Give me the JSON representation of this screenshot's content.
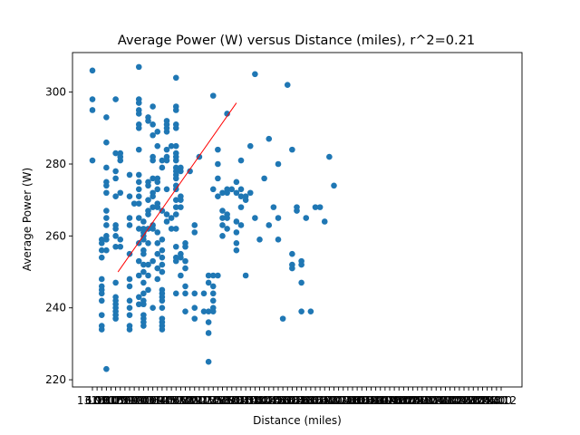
{
  "chart_data": {
    "type": "scatter",
    "title": "Average Power (W) versus Distance (miles), r^2=0.21",
    "xlabel": "Distance (miles)",
    "ylabel": "Average Power (W)",
    "ylim": [
      218,
      311
    ],
    "yticks": [
      220,
      240,
      260,
      280,
      300
    ],
    "xtick_labels": [
      "13.09",
      "6.98",
      "10.00",
      "10.07",
      "10.09",
      "10.50",
      "10.51",
      "10.90",
      "10.99",
      "11.00",
      "11.03",
      "11.06",
      "11.09",
      "11.10",
      "11.40",
      "11.45",
      "11.50",
      "11.65",
      "11.70",
      "11.80",
      "11.89",
      "12.00",
      "12.10",
      "12.15",
      "12.30",
      "12.35",
      "12.50",
      "12.65",
      "12.80",
      "12.90",
      "13.00",
      "13.20",
      "13.40",
      "13.50",
      "13.70",
      "13.80",
      "14.00",
      "14.20",
      "14.40",
      "14.50",
      "14.60",
      "14.80",
      "15.00",
      "15.20",
      "15.40",
      "15.60",
      "15.80",
      "16.00",
      "16.20",
      "16.40",
      "16.60",
      "16.80",
      "17.00",
      "17.20",
      "17.40",
      "17.60",
      "17.80",
      "18.00",
      "18.20",
      "18.40",
      "18.60",
      "18.80",
      "19.00",
      "19.20",
      "19.40",
      "19.60",
      "19.80",
      "20.00",
      "20.20",
      "20.40",
      "20.60",
      "20.80",
      "21.00",
      "21.20",
      "21.40",
      "21.60",
      "21.80",
      "22.00",
      "22.20",
      "22.40",
      "22.60",
      "22.80",
      "23.00",
      "23.20",
      "23.40",
      "23.60",
      "23.80",
      "24.00",
      "24.12"
    ],
    "points": [
      {
        "x": 0,
        "y": 306
      },
      {
        "x": 0,
        "y": 298
      },
      {
        "x": 0,
        "y": 295
      },
      {
        "x": 0,
        "y": 281
      },
      {
        "x": 2,
        "y": 259
      },
      {
        "x": 2,
        "y": 258
      },
      {
        "x": 2,
        "y": 256
      },
      {
        "x": 2,
        "y": 254
      },
      {
        "x": 2,
        "y": 248
      },
      {
        "x": 2,
        "y": 246
      },
      {
        "x": 2,
        "y": 245
      },
      {
        "x": 2,
        "y": 244
      },
      {
        "x": 2,
        "y": 242
      },
      {
        "x": 2,
        "y": 238
      },
      {
        "x": 2,
        "y": 235
      },
      {
        "x": 2,
        "y": 234
      },
      {
        "x": 3,
        "y": 293
      },
      {
        "x": 3,
        "y": 286
      },
      {
        "x": 3,
        "y": 279
      },
      {
        "x": 3,
        "y": 275
      },
      {
        "x": 3,
        "y": 274
      },
      {
        "x": 3,
        "y": 272
      },
      {
        "x": 3,
        "y": 267
      },
      {
        "x": 3,
        "y": 265
      },
      {
        "x": 3,
        "y": 263
      },
      {
        "x": 3,
        "y": 260
      },
      {
        "x": 3,
        "y": 259
      },
      {
        "x": 3,
        "y": 256
      },
      {
        "x": 3,
        "y": 223
      },
      {
        "x": 5,
        "y": 298
      },
      {
        "x": 5,
        "y": 283
      },
      {
        "x": 5,
        "y": 278
      },
      {
        "x": 5,
        "y": 276
      },
      {
        "x": 5,
        "y": 271
      },
      {
        "x": 5,
        "y": 263
      },
      {
        "x": 5,
        "y": 262
      },
      {
        "x": 5,
        "y": 260
      },
      {
        "x": 5,
        "y": 257
      },
      {
        "x": 5,
        "y": 247
      },
      {
        "x": 5,
        "y": 243
      },
      {
        "x": 5,
        "y": 242
      },
      {
        "x": 5,
        "y": 241
      },
      {
        "x": 5,
        "y": 240
      },
      {
        "x": 5,
        "y": 239
      },
      {
        "x": 5,
        "y": 238
      },
      {
        "x": 5,
        "y": 237
      },
      {
        "x": 6,
        "y": 283
      },
      {
        "x": 6,
        "y": 282
      },
      {
        "x": 6,
        "y": 281
      },
      {
        "x": 6,
        "y": 272
      },
      {
        "x": 6,
        "y": 259
      },
      {
        "x": 6,
        "y": 257
      },
      {
        "x": 8,
        "y": 277
      },
      {
        "x": 8,
        "y": 271
      },
      {
        "x": 8,
        "y": 265
      },
      {
        "x": 8,
        "y": 263
      },
      {
        "x": 8,
        "y": 255
      },
      {
        "x": 8,
        "y": 248
      },
      {
        "x": 8,
        "y": 246
      },
      {
        "x": 8,
        "y": 242
      },
      {
        "x": 8,
        "y": 240
      },
      {
        "x": 8,
        "y": 238
      },
      {
        "x": 8,
        "y": 235
      },
      {
        "x": 8,
        "y": 234
      },
      {
        "x": 9,
        "y": 269
      },
      {
        "x": 10,
        "y": 307
      },
      {
        "x": 10,
        "y": 298
      },
      {
        "x": 10,
        "y": 297
      },
      {
        "x": 10,
        "y": 295
      },
      {
        "x": 10,
        "y": 294
      },
      {
        "x": 10,
        "y": 291
      },
      {
        "x": 10,
        "y": 290
      },
      {
        "x": 10,
        "y": 284
      },
      {
        "x": 10,
        "y": 277
      },
      {
        "x": 10,
        "y": 275
      },
      {
        "x": 10,
        "y": 273
      },
      {
        "x": 10,
        "y": 271
      },
      {
        "x": 10,
        "y": 269
      },
      {
        "x": 10,
        "y": 265
      },
      {
        "x": 10,
        "y": 262
      },
      {
        "x": 10,
        "y": 258
      },
      {
        "x": 10,
        "y": 253
      },
      {
        "x": 10,
        "y": 249
      },
      {
        "x": 10,
        "y": 243
      },
      {
        "x": 10,
        "y": 241
      },
      {
        "x": 11,
        "y": 264
      },
      {
        "x": 11,
        "y": 262
      },
      {
        "x": 11,
        "y": 261
      },
      {
        "x": 11,
        "y": 260
      },
      {
        "x": 11,
        "y": 259
      },
      {
        "x": 11,
        "y": 256
      },
      {
        "x": 11,
        "y": 255
      },
      {
        "x": 11,
        "y": 252
      },
      {
        "x": 11,
        "y": 250
      },
      {
        "x": 11,
        "y": 247
      },
      {
        "x": 11,
        "y": 244
      },
      {
        "x": 11,
        "y": 242
      },
      {
        "x": 11,
        "y": 241
      },
      {
        "x": 11,
        "y": 238
      },
      {
        "x": 11,
        "y": 237
      },
      {
        "x": 11,
        "y": 236
      },
      {
        "x": 11,
        "y": 235
      },
      {
        "x": 12,
        "y": 293
      },
      {
        "x": 12,
        "y": 292
      },
      {
        "x": 12,
        "y": 275
      },
      {
        "x": 12,
        "y": 274
      },
      {
        "x": 12,
        "y": 270
      },
      {
        "x": 12,
        "y": 267
      },
      {
        "x": 12,
        "y": 266
      },
      {
        "x": 12,
        "y": 262
      },
      {
        "x": 12,
        "y": 258
      },
      {
        "x": 12,
        "y": 252
      },
      {
        "x": 12,
        "y": 249
      },
      {
        "x": 12,
        "y": 245
      },
      {
        "x": 13,
        "y": 296
      },
      {
        "x": 13,
        "y": 291
      },
      {
        "x": 13,
        "y": 288
      },
      {
        "x": 13,
        "y": 282
      },
      {
        "x": 13,
        "y": 281
      },
      {
        "x": 13,
        "y": 276
      },
      {
        "x": 13,
        "y": 272
      },
      {
        "x": 13,
        "y": 271
      },
      {
        "x": 13,
        "y": 268
      },
      {
        "x": 13,
        "y": 263
      },
      {
        "x": 13,
        "y": 262
      },
      {
        "x": 13,
        "y": 253
      },
      {
        "x": 13,
        "y": 240
      },
      {
        "x": 14,
        "y": 289
      },
      {
        "x": 14,
        "y": 285
      },
      {
        "x": 14,
        "y": 276
      },
      {
        "x": 14,
        "y": 275
      },
      {
        "x": 14,
        "y": 273
      },
      {
        "x": 14,
        "y": 269
      },
      {
        "x": 14,
        "y": 268
      },
      {
        "x": 14,
        "y": 261
      },
      {
        "x": 14,
        "y": 258
      },
      {
        "x": 14,
        "y": 255
      },
      {
        "x": 14,
        "y": 251
      },
      {
        "x": 14,
        "y": 248
      },
      {
        "x": 15,
        "y": 281
      },
      {
        "x": 15,
        "y": 279
      },
      {
        "x": 15,
        "y": 267
      },
      {
        "x": 15,
        "y": 259
      },
      {
        "x": 15,
        "y": 256
      },
      {
        "x": 15,
        "y": 254
      },
      {
        "x": 15,
        "y": 252
      },
      {
        "x": 15,
        "y": 250
      },
      {
        "x": 15,
        "y": 245
      },
      {
        "x": 15,
        "y": 244
      },
      {
        "x": 15,
        "y": 243
      },
      {
        "x": 15,
        "y": 242
      },
      {
        "x": 15,
        "y": 240
      },
      {
        "x": 15,
        "y": 237
      },
      {
        "x": 15,
        "y": 236
      },
      {
        "x": 15,
        "y": 235
      },
      {
        "x": 15,
        "y": 234
      },
      {
        "x": 16,
        "y": 292
      },
      {
        "x": 16,
        "y": 291
      },
      {
        "x": 16,
        "y": 290
      },
      {
        "x": 16,
        "y": 289
      },
      {
        "x": 16,
        "y": 284
      },
      {
        "x": 16,
        "y": 282
      },
      {
        "x": 16,
        "y": 281
      },
      {
        "x": 16,
        "y": 273
      },
      {
        "x": 16,
        "y": 266
      },
      {
        "x": 16,
        "y": 264
      },
      {
        "x": 17,
        "y": 285
      },
      {
        "x": 17,
        "y": 265
      },
      {
        "x": 17,
        "y": 262
      },
      {
        "x": 18,
        "y": 304
      },
      {
        "x": 18,
        "y": 296
      },
      {
        "x": 18,
        "y": 295
      },
      {
        "x": 18,
        "y": 291
      },
      {
        "x": 18,
        "y": 290
      },
      {
        "x": 18,
        "y": 285
      },
      {
        "x": 18,
        "y": 283
      },
      {
        "x": 18,
        "y": 282
      },
      {
        "x": 18,
        "y": 281
      },
      {
        "x": 18,
        "y": 279
      },
      {
        "x": 18,
        "y": 278
      },
      {
        "x": 18,
        "y": 277
      },
      {
        "x": 18,
        "y": 276
      },
      {
        "x": 18,
        "y": 274
      },
      {
        "x": 18,
        "y": 273
      },
      {
        "x": 18,
        "y": 270
      },
      {
        "x": 18,
        "y": 268
      },
      {
        "x": 18,
        "y": 266
      },
      {
        "x": 18,
        "y": 262
      },
      {
        "x": 18,
        "y": 257
      },
      {
        "x": 18,
        "y": 254
      },
      {
        "x": 18,
        "y": 253
      },
      {
        "x": 18,
        "y": 244
      },
      {
        "x": 19,
        "y": 279
      },
      {
        "x": 19,
        "y": 278
      },
      {
        "x": 19,
        "y": 271
      },
      {
        "x": 19,
        "y": 270
      },
      {
        "x": 19,
        "y": 268
      },
      {
        "x": 19,
        "y": 255
      },
      {
        "x": 19,
        "y": 254
      },
      {
        "x": 19,
        "y": 249
      },
      {
        "x": 20,
        "y": 258
      },
      {
        "x": 20,
        "y": 257
      },
      {
        "x": 20,
        "y": 253
      },
      {
        "x": 20,
        "y": 251
      },
      {
        "x": 20,
        "y": 246
      },
      {
        "x": 20,
        "y": 244
      },
      {
        "x": 20,
        "y": 239
      },
      {
        "x": 21,
        "y": 278
      },
      {
        "x": 22,
        "y": 263
      },
      {
        "x": 22,
        "y": 261
      },
      {
        "x": 22,
        "y": 244
      },
      {
        "x": 22,
        "y": 240
      },
      {
        "x": 22,
        "y": 237
      },
      {
        "x": 23,
        "y": 282
      },
      {
        "x": 24,
        "y": 244
      },
      {
        "x": 24,
        "y": 239
      },
      {
        "x": 25,
        "y": 249
      },
      {
        "x": 25,
        "y": 247
      },
      {
        "x": 25,
        "y": 239
      },
      {
        "x": 25,
        "y": 236
      },
      {
        "x": 25,
        "y": 233
      },
      {
        "x": 25,
        "y": 225
      },
      {
        "x": 26,
        "y": 299
      },
      {
        "x": 26,
        "y": 273
      },
      {
        "x": 26,
        "y": 249
      },
      {
        "x": 26,
        "y": 246
      },
      {
        "x": 26,
        "y": 244
      },
      {
        "x": 26,
        "y": 242
      },
      {
        "x": 26,
        "y": 240
      },
      {
        "x": 26,
        "y": 239
      },
      {
        "x": 27,
        "y": 284
      },
      {
        "x": 27,
        "y": 280
      },
      {
        "x": 27,
        "y": 276
      },
      {
        "x": 27,
        "y": 271
      },
      {
        "x": 27,
        "y": 249
      },
      {
        "x": 28,
        "y": 272
      },
      {
        "x": 28,
        "y": 267
      },
      {
        "x": 28,
        "y": 265
      },
      {
        "x": 28,
        "y": 263
      },
      {
        "x": 28,
        "y": 260
      },
      {
        "x": 29,
        "y": 294
      },
      {
        "x": 29,
        "y": 273
      },
      {
        "x": 29,
        "y": 272
      },
      {
        "x": 29,
        "y": 266
      },
      {
        "x": 29,
        "y": 265
      },
      {
        "x": 29,
        "y": 262
      },
      {
        "x": 30,
        "y": 273
      },
      {
        "x": 31,
        "y": 275
      },
      {
        "x": 31,
        "y": 272
      },
      {
        "x": 31,
        "y": 264
      },
      {
        "x": 31,
        "y": 261
      },
      {
        "x": 31,
        "y": 258
      },
      {
        "x": 31,
        "y": 256
      },
      {
        "x": 32,
        "y": 281
      },
      {
        "x": 32,
        "y": 273
      },
      {
        "x": 32,
        "y": 271
      },
      {
        "x": 32,
        "y": 268
      },
      {
        "x": 32,
        "y": 263
      },
      {
        "x": 33,
        "y": 271
      },
      {
        "x": 33,
        "y": 270
      },
      {
        "x": 33,
        "y": 249
      },
      {
        "x": 34,
        "y": 285
      },
      {
        "x": 34,
        "y": 272
      },
      {
        "x": 35,
        "y": 305
      },
      {
        "x": 35,
        "y": 265
      },
      {
        "x": 36,
        "y": 259
      },
      {
        "x": 37,
        "y": 276
      },
      {
        "x": 38,
        "y": 287
      },
      {
        "x": 38,
        "y": 263
      },
      {
        "x": 39,
        "y": 268
      },
      {
        "x": 40,
        "y": 280
      },
      {
        "x": 40,
        "y": 265
      },
      {
        "x": 40,
        "y": 259
      },
      {
        "x": 41,
        "y": 237
      },
      {
        "x": 42,
        "y": 302
      },
      {
        "x": 43,
        "y": 284
      },
      {
        "x": 43,
        "y": 255
      },
      {
        "x": 43,
        "y": 252
      },
      {
        "x": 43,
        "y": 251
      },
      {
        "x": 44,
        "y": 268
      },
      {
        "x": 44,
        "y": 267
      },
      {
        "x": 45,
        "y": 253
      },
      {
        "x": 45,
        "y": 252
      },
      {
        "x": 45,
        "y": 247
      },
      {
        "x": 45,
        "y": 239
      },
      {
        "x": 46,
        "y": 265
      },
      {
        "x": 47,
        "y": 239
      },
      {
        "x": 48,
        "y": 268
      },
      {
        "x": 49,
        "y": 268
      },
      {
        "x": 50,
        "y": 264
      },
      {
        "x": 51,
        "y": 282
      },
      {
        "x": 52,
        "y": 274
      }
    ],
    "trend_line": {
      "x": [
        5.5,
        31
      ],
      "y": [
        250,
        297
      ]
    },
    "grid": false,
    "legend": "none"
  }
}
